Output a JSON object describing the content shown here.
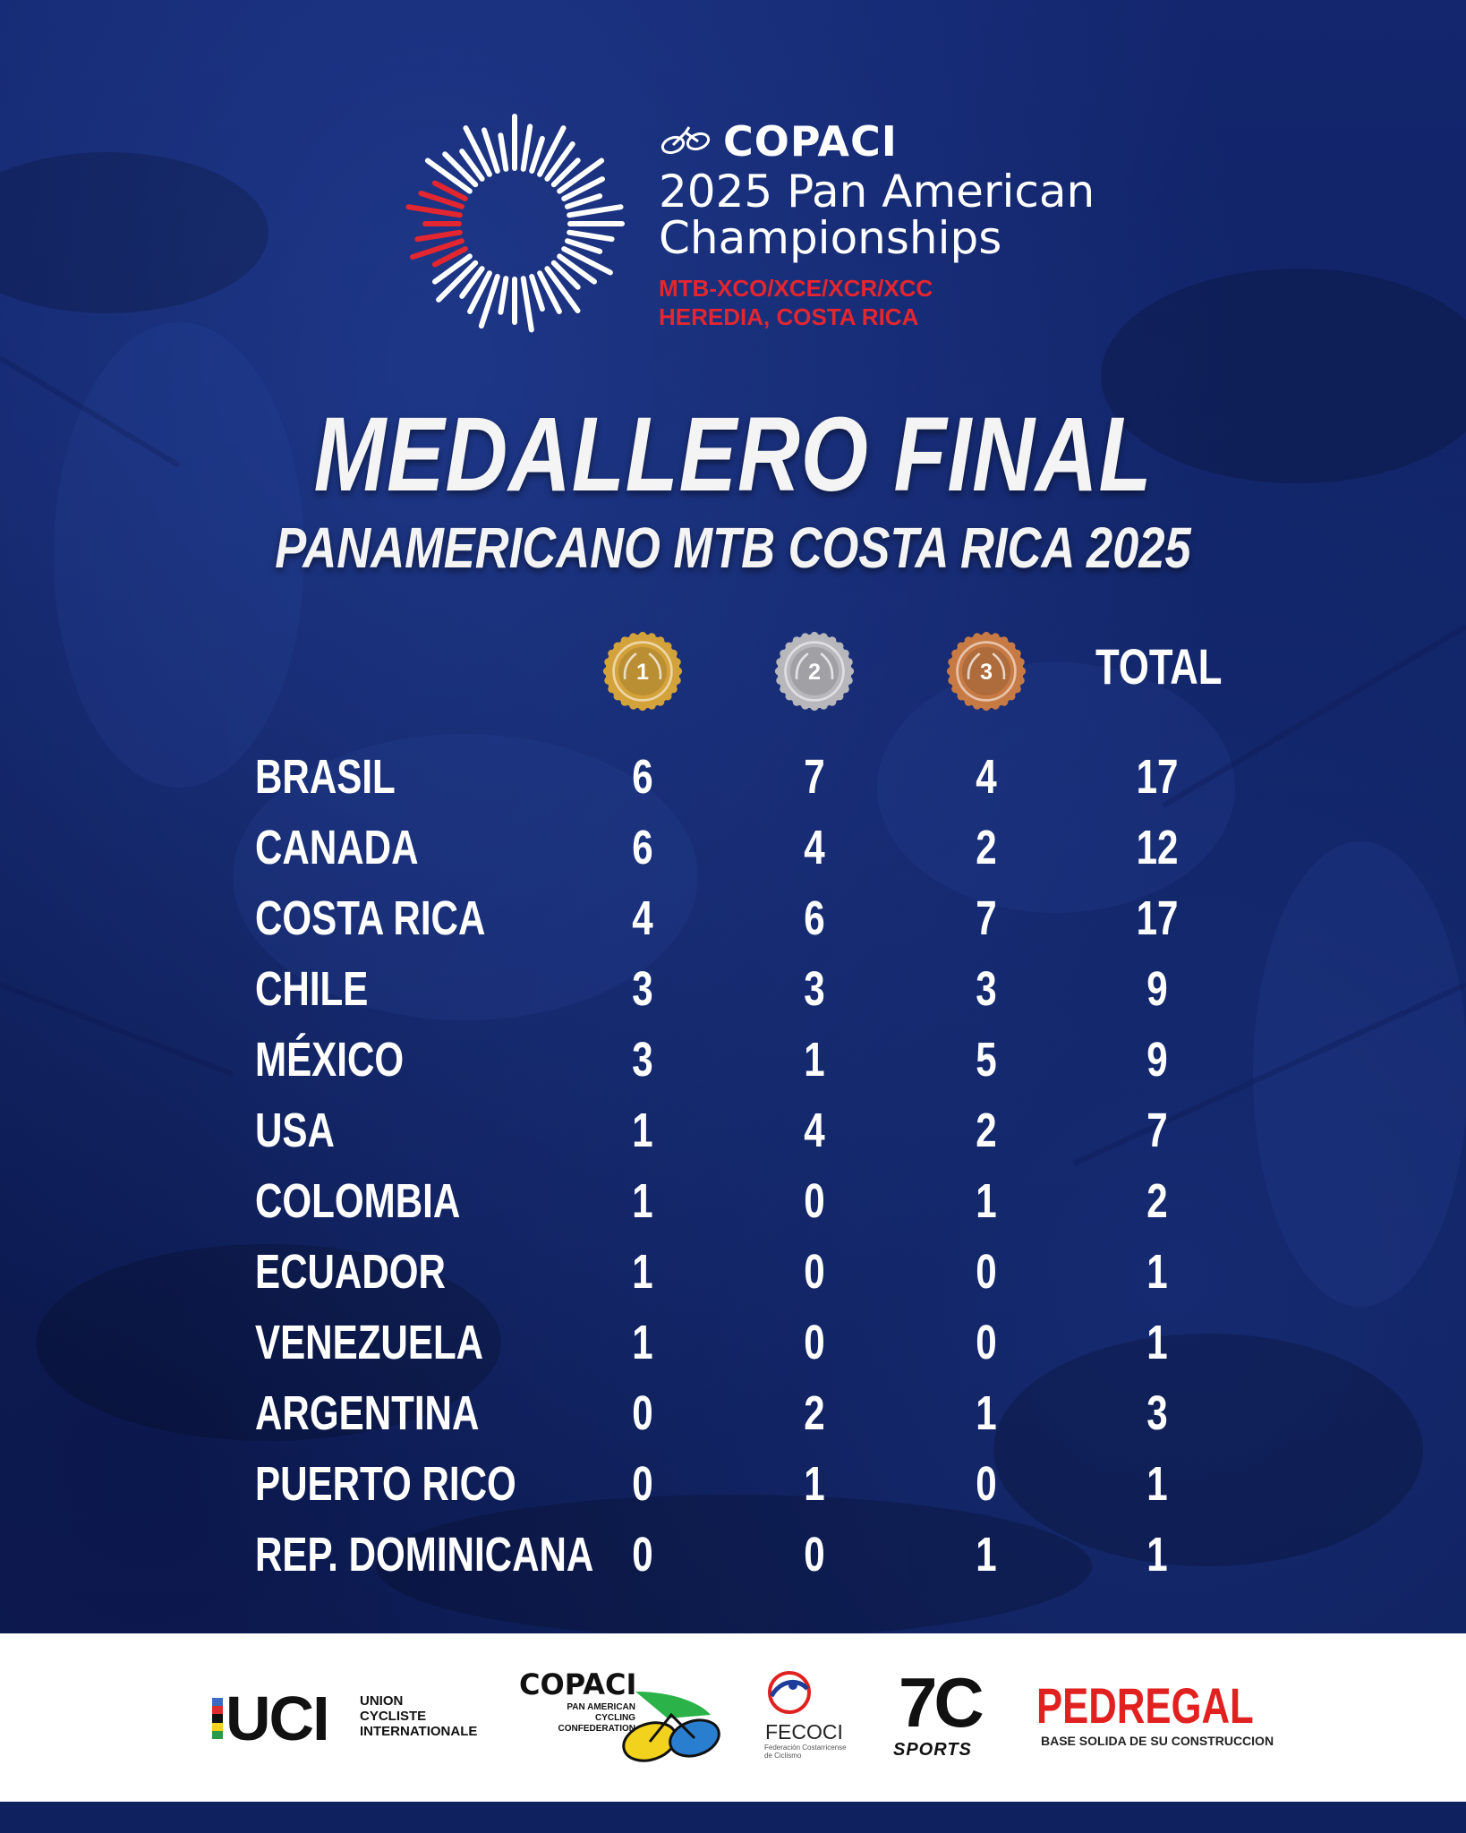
{
  "header": {
    "brand_name": "COPACI",
    "event_line1": "2025 Pan American",
    "event_line2": "Championships",
    "disciplines": "MTB-XCO/XCE/XCR/XCC",
    "location": "HEREDIA, COSTA RICA"
  },
  "title": "MEDALLERO FINAL",
  "subtitle": "PANAMERICANO MTB COSTA RICA 2025",
  "table": {
    "medal_icons": [
      {
        "name": "gold-medal-icon",
        "number": "1",
        "color": "#d4a23a"
      },
      {
        "name": "silver-medal-icon",
        "number": "2",
        "color": "#b8b8bc"
      },
      {
        "name": "bronze-medal-icon",
        "number": "3",
        "color": "#c77a44"
      }
    ],
    "total_header": "TOTAL",
    "rows": [
      {
        "country": "BRASIL",
        "gold": "6",
        "silver": "7",
        "bronze": "4",
        "total": "17"
      },
      {
        "country": "CANADA",
        "gold": "6",
        "silver": "4",
        "bronze": "2",
        "total": "12"
      },
      {
        "country": "COSTA RICA",
        "gold": "4",
        "silver": "6",
        "bronze": "7",
        "total": "17"
      },
      {
        "country": "CHILE",
        "gold": "3",
        "silver": "3",
        "bronze": "3",
        "total": "9"
      },
      {
        "country": "MÉXICO",
        "gold": "3",
        "silver": "1",
        "bronze": "5",
        "total": "9"
      },
      {
        "country": "USA",
        "gold": "1",
        "silver": "4",
        "bronze": "2",
        "total": "7"
      },
      {
        "country": "COLOMBIA",
        "gold": "1",
        "silver": "0",
        "bronze": "1",
        "total": "2"
      },
      {
        "country": "ECUADOR",
        "gold": "1",
        "silver": "0",
        "bronze": "0",
        "total": "1"
      },
      {
        "country": "VENEZUELA",
        "gold": "1",
        "silver": "0",
        "bronze": "0",
        "total": "1"
      },
      {
        "country": "ARGENTINA",
        "gold": "0",
        "silver": "2",
        "bronze": "1",
        "total": "3"
      },
      {
        "country": "PUERTO RICO",
        "gold": "0",
        "silver": "1",
        "bronze": "0",
        "total": "1"
      },
      {
        "country": "REP. DOMINICANA",
        "gold": "0",
        "silver": "0",
        "bronze": "1",
        "total": "1"
      }
    ]
  },
  "sponsors": {
    "uci": {
      "name": "UCI",
      "line1": "UNION",
      "line2": "CYCLISTE",
      "line3": "INTERNATIONALE"
    },
    "copaci": {
      "name": "COPACI",
      "line1": "PAN AMERICAN",
      "line2": "CYCLING",
      "line3": "CONFEDERATION"
    },
    "fecoci": {
      "name": "FECOCI",
      "tagline": "Federación Costarricense de Ciclismo"
    },
    "sevenc": {
      "name": "7C",
      "tagline": "SPORTS"
    },
    "pedregal": {
      "name": "PEDREGAL",
      "tagline": "BASE SOLIDA DE SU CONSTRUCCION"
    }
  },
  "colors": {
    "background": "#13266e",
    "accent_red": "#e3262f",
    "text": "#ffffff",
    "footer": "#ffffff"
  }
}
